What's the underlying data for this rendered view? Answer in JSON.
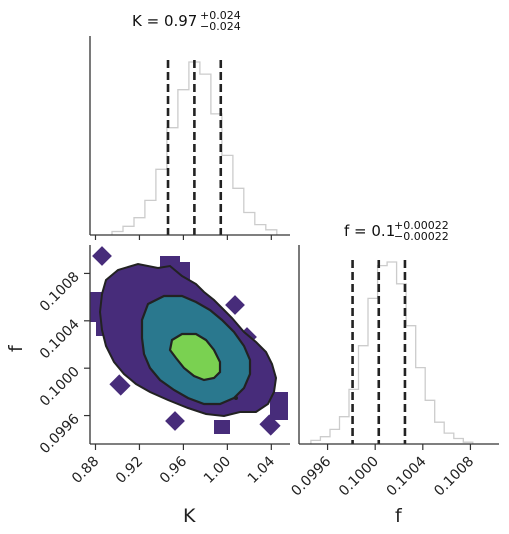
{
  "chart_data": {
    "type": "corner",
    "parameters": [
      "K",
      "f"
    ],
    "panels": [
      {
        "panel": "K-marginal-histogram",
        "type": "histogram",
        "title_main": "K = 0.97",
        "title_sup": "+0.024",
        "title_sub": "−0.024",
        "quantiles": [
          0.946,
          0.97,
          0.994
        ],
        "bin_edges": [
          0.895,
          0.905,
          0.915,
          0.925,
          0.935,
          0.945,
          0.955,
          0.965,
          0.975,
          0.985,
          0.995,
          1.005,
          1.015,
          1.025,
          1.035,
          1.045
        ],
        "counts": [
          2,
          5,
          10,
          20,
          38,
          62,
          84,
          100,
          93,
          70,
          46,
          27,
          13,
          6,
          3
        ],
        "xlim": [
          0.875,
          1.057
        ],
        "color": "#cccccc"
      },
      {
        "panel": "f-marginal-histogram",
        "type": "histogram",
        "title_main": "f = 0.1",
        "title_sup": "+0.00022",
        "title_sub": "−0.00022",
        "quantiles": [
          0.09981,
          0.10003,
          0.10025
        ],
        "bin_edges": [
          0.09946,
          0.09954,
          0.09962,
          0.0997,
          0.09978,
          0.09986,
          0.09994,
          0.10002,
          0.1001,
          0.10018,
          0.10026,
          0.10034,
          0.10042,
          0.1005,
          0.10058,
          0.10066,
          0.10074,
          0.10082
        ],
        "counts": [
          2,
          4,
          8,
          15,
          30,
          54,
          80,
          98,
          100,
          88,
          65,
          42,
          24,
          12,
          6,
          3,
          1
        ],
        "xlim": [
          0.09936,
          0.10104
        ],
        "color": "#cccccc"
      },
      {
        "panel": "K-f-joint",
        "type": "contour",
        "xlim": [
          0.875,
          1.057
        ],
        "ylim": [
          0.09936,
          0.10104
        ],
        "center": [
          0.971,
          0.10018
        ],
        "levels": [
          {
            "name": "outer",
            "color": "#472c7a"
          },
          {
            "name": "middle",
            "color": "#2a788e"
          },
          {
            "name": "inner",
            "color": "#7ad151"
          }
        ],
        "line_color": "#222222"
      }
    ],
    "xlabels": [
      "K",
      "f"
    ],
    "ylabel": "f",
    "K_ticks": [
      "0.88",
      "0.92",
      "0.96",
      "1.00",
      "1.04"
    ],
    "K_tick_values": [
      0.88,
      0.92,
      0.96,
      1.0,
      1.04
    ],
    "f_ticks": [
      "0.0996",
      "0.1000",
      "0.1004",
      "0.1008"
    ],
    "f_tick_values": [
      0.0996,
      0.1,
      0.1004,
      0.1008
    ]
  }
}
